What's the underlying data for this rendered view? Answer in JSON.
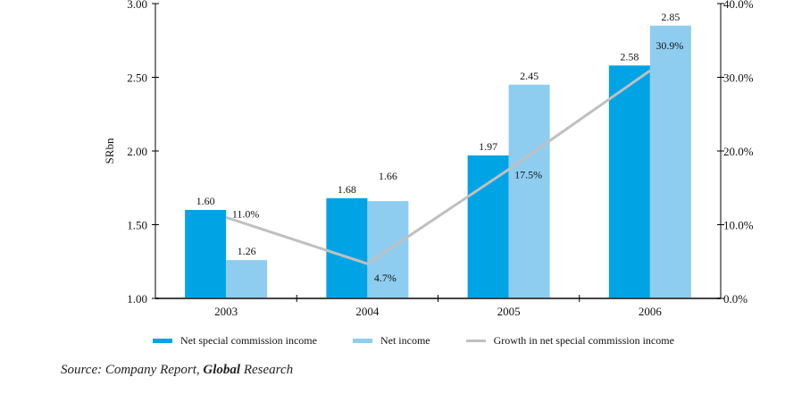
{
  "chart_data": {
    "type": "bar",
    "title": "",
    "categories": [
      "2003",
      "2004",
      "2005",
      "2006"
    ],
    "series": [
      {
        "name": "Net special commission income",
        "type": "bar",
        "axis": "left",
        "color": "#00a4e4",
        "values": [
          1.6,
          1.68,
          1.97,
          2.58
        ],
        "labels": [
          "1.60",
          "1.68",
          "1.97",
          "2.58"
        ]
      },
      {
        "name": "Net income",
        "type": "bar",
        "axis": "left",
        "color": "#8ecdf0",
        "values": [
          1.26,
          1.66,
          2.45,
          2.85
        ],
        "labels": [
          "1.26",
          "1.66",
          "2.45",
          "2.85"
        ]
      },
      {
        "name": "Growth in net special commission income",
        "type": "line",
        "axis": "right",
        "color": "#c0c0c0",
        "values": [
          11.0,
          4.7,
          17.5,
          30.9
        ],
        "labels": [
          "11.0%",
          "4.7%",
          "17.5%",
          "30.9%"
        ]
      }
    ],
    "ylabel": "SRbn",
    "xlabel": "",
    "ylim": [
      1.0,
      3.0
    ],
    "yticks": [
      "1.00",
      "1.50",
      "2.00",
      "2.50",
      "3.00"
    ],
    "y2lim": [
      0,
      40
    ],
    "y2ticks": [
      "0.0%",
      "10.0%",
      "20.0%",
      "30.0%",
      "40.0%"
    ],
    "grid": false,
    "legend_position": "bottom"
  },
  "source": {
    "prefix": "Source: Company Report, ",
    "bold": "Global",
    "suffix": " Research"
  }
}
